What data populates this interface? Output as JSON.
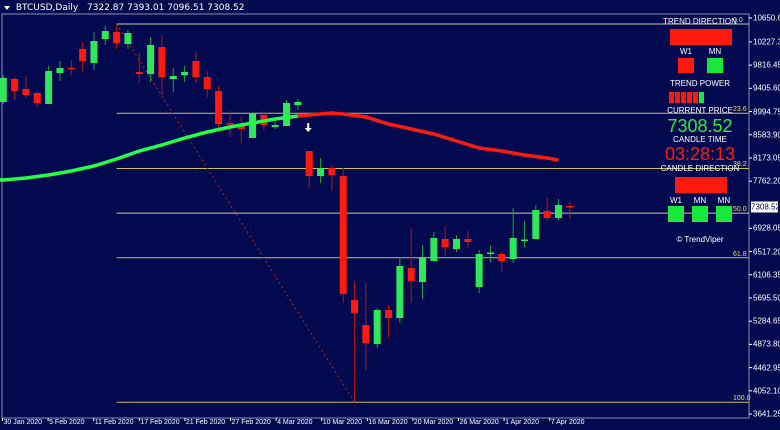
{
  "window": {
    "symbol_title": "BTCUSD,Daily",
    "ohlc_text": "7322.87 7393.01 7096.51 7308.52"
  },
  "colors": {
    "background": "#02094e",
    "bull": "#2ee85a",
    "bear": "#ff1a10",
    "ma_up": "#22ff44",
    "ma_down": "#ff1a10",
    "fib": "#c8c05a",
    "text": "#ffffff"
  },
  "price_axis": {
    "labels": [
      "10650.60",
      "10227.30",
      "9816.45",
      "9405.60",
      "8994.75",
      "8583.90",
      "8173.05",
      "7762.20",
      "6928.05",
      "6517.20",
      "6106.35",
      "5695.50",
      "5284.65",
      "4873.80",
      "4462.95",
      "4052.10",
      "3641.25"
    ],
    "current_price": "7308.52"
  },
  "time_axis": {
    "labels": [
      "30 Jan 2020",
      "5 Feb 2020",
      "11 Feb 2020",
      "17 Feb 2020",
      "21 Feb 2020",
      "27 Feb 2020",
      "4 Mar 2020",
      "10 Mar 2020",
      "16 Mar 2020",
      "20 Mar 2020",
      "26 Mar 2020",
      "1 Apr 2020",
      "7 Apr 2020"
    ]
  },
  "chart_data": {
    "type": "candlestick",
    "ylim": [
      3641.25,
      10650.6
    ],
    "ohlc": [
      [
        9164,
        9641,
        9128,
        9588
      ],
      [
        9571,
        9606,
        9199,
        9358
      ],
      [
        9394,
        9624,
        9235,
        9288
      ],
      [
        9323,
        9358,
        9075,
        9146
      ],
      [
        9128,
        9801,
        9128,
        9712
      ],
      [
        9677,
        9889,
        9535,
        9765
      ],
      [
        9770,
        9907,
        9641,
        9755
      ],
      [
        10102,
        10226,
        9695,
        9889
      ],
      [
        9854,
        10403,
        9730,
        10243
      ],
      [
        10279,
        10509,
        10173,
        10420
      ],
      [
        10403,
        10544,
        10102,
        10208
      ],
      [
        10190,
        10438,
        10102,
        10385
      ],
      [
        9695,
        10031,
        9500,
        9659
      ],
      [
        9659,
        10314,
        9518,
        10173
      ],
      [
        10137,
        10350,
        9288,
        9606
      ],
      [
        9571,
        9765,
        9341,
        9624
      ],
      [
        9641,
        9801,
        9518,
        9695
      ],
      [
        9889,
        10049,
        9500,
        9606
      ],
      [
        9606,
        9712,
        9252,
        9394
      ],
      [
        9358,
        9447,
        8615,
        8774
      ],
      [
        8790,
        9004,
        8544,
        8765
      ],
      [
        8739,
        8916,
        8438,
        8686
      ],
      [
        8527,
        8969,
        8527,
        8969
      ],
      [
        8934,
        9004,
        8668,
        8757
      ],
      [
        8721,
        8810,
        8686,
        8757
      ],
      [
        8739,
        9199,
        8739,
        9146
      ],
      [
        9111,
        9217,
        9022,
        9164
      ],
      [
        8296,
        8296,
        7642,
        7854
      ],
      [
        7854,
        8172,
        7730,
        7995
      ],
      [
        7995,
        8049,
        7588,
        7872
      ],
      [
        7854,
        7995,
        5606,
        5765
      ],
      [
        5659,
        5995,
        3850,
        5429
      ],
      [
        5217,
        5960,
        4420,
        4898
      ],
      [
        4880,
        5517,
        4810,
        5482
      ],
      [
        5482,
        5570,
        5004,
        5340
      ],
      [
        5340,
        6420,
        5252,
        6261
      ],
      [
        6226,
        6933,
        5606,
        5995
      ],
      [
        5978,
        6633,
        5677,
        6420
      ],
      [
        6349,
        6863,
        6349,
        6756
      ],
      [
        6739,
        6969,
        6456,
        6597
      ],
      [
        6562,
        6810,
        6509,
        6739
      ],
      [
        6739,
        6880,
        6580,
        6686
      ],
      [
        5889,
        6544,
        5783,
        6473
      ],
      [
        6480,
        6615,
        6331,
        6500
      ],
      [
        6473,
        6509,
        6154,
        6349
      ],
      [
        6385,
        7287,
        6314,
        6756
      ],
      [
        6712,
        7057,
        6597,
        6730
      ],
      [
        6739,
        7340,
        6739,
        7252
      ],
      [
        7234,
        7482,
        7057,
        7110
      ],
      [
        7110,
        7447,
        7075,
        7340
      ],
      [
        7322.87,
        7393.01,
        7096.51,
        7308.52
      ]
    ],
    "moving_average": [
      [
        0,
        7783
      ],
      [
        2,
        7818
      ],
      [
        4,
        7872
      ],
      [
        6,
        7942
      ],
      [
        8,
        8031
      ],
      [
        10,
        8155
      ],
      [
        12,
        8296
      ],
      [
        14,
        8403
      ],
      [
        16,
        8527
      ],
      [
        18,
        8633
      ],
      [
        20,
        8721
      ],
      [
        22,
        8792
      ],
      [
        24,
        8863
      ],
      [
        26,
        8916
      ],
      [
        28,
        8951
      ],
      [
        29,
        8969
      ],
      [
        30,
        8951
      ],
      [
        32,
        8898
      ],
      [
        34,
        8774
      ],
      [
        36,
        8686
      ],
      [
        38,
        8597
      ],
      [
        40,
        8473
      ],
      [
        42,
        8349
      ],
      [
        44,
        8296
      ],
      [
        46,
        8226
      ],
      [
        48,
        8172
      ],
      [
        49,
        8137
      ]
    ],
    "ma_color_change_bar": 26,
    "fibonacci": {
      "high": 10544,
      "low": 3850,
      "high_bar": 10,
      "low_bar": 31,
      "levels": [
        {
          "label": "0.0",
          "ratio": 0
        },
        {
          "label": "23.6",
          "ratio": 0.236
        },
        {
          "label": "38.2",
          "ratio": 0.382
        },
        {
          "label": "50.0",
          "ratio": 0.5
        },
        {
          "label": "61.8",
          "ratio": 0.618
        },
        {
          "label": "100.0",
          "ratio": 1
        }
      ]
    },
    "arrow_signal": {
      "bar": 27,
      "direction": "down"
    }
  },
  "panel": {
    "trend_direction_label": "TREND DIRECTION",
    "trend_direction_color": "#ff1a10",
    "tf1": "W1",
    "tf2": "MN",
    "tf1_color": "#ff1a10",
    "tf2_color": "#18e83c",
    "trend_power_label": "TREND POWER",
    "trend_power": {
      "red_segments": 5,
      "green_segments": 1
    },
    "current_price_label": "CURRENT PRICE",
    "current_price": "7308.52",
    "candle_time_label": "CANDLE TIME",
    "candle_time": "03:28:13",
    "candle_direction_label": "CANDLE DIRECTION",
    "candle_direction_color": "#ff1a10",
    "cd_tf1": "W1",
    "cd_tf2": "MN",
    "cd_tf3": "MN",
    "cd_colors": [
      "#18e83c",
      "#18e83c",
      "#18e83c"
    ],
    "brand": "© TrendViper"
  }
}
